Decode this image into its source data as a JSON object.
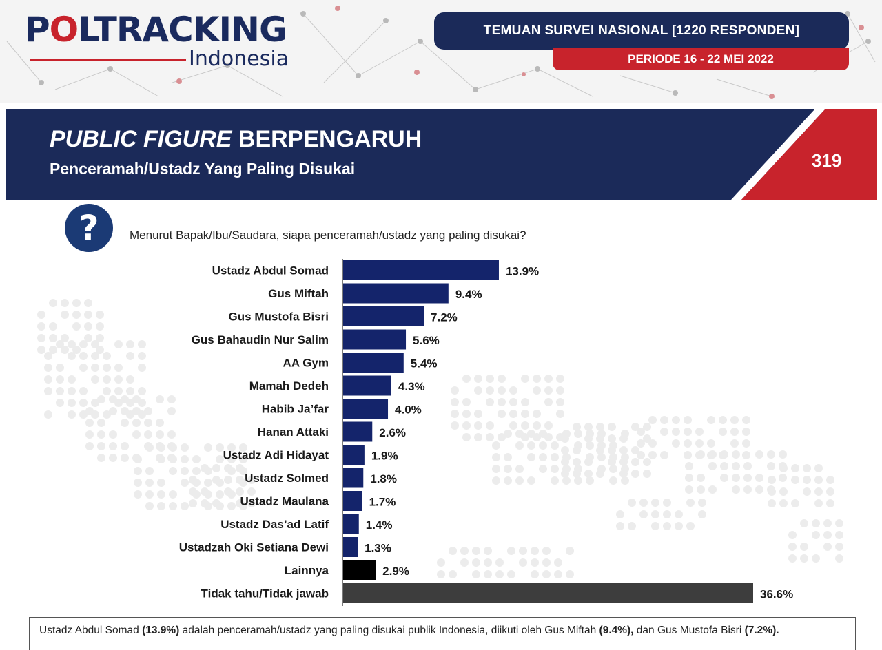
{
  "header": {
    "logo_main": "POLTRACKING",
    "logo_sub": "Indonesia",
    "survey_label": "TEMUAN SURVEI NASIONAL [1220 RESPONDEN]",
    "period_label": "PERIODE 16 - 22 MEI 2022"
  },
  "title_band": {
    "title_italic": "PUBLIC FIGURE",
    "title_rest": "BERPENGARUH",
    "subtitle": "Penceramah/Ustadz Yang Paling Disukai",
    "page_number": "319"
  },
  "question": {
    "icon": "question-mark-icon",
    "text": "Menurut Bapak/Ibu/Saudara, siapa penceramah/ustadz yang paling disukai?"
  },
  "colors": {
    "navy": "#1b2a59",
    "bar_blue": "#14246b",
    "red": "#c8232c",
    "bar_other": "#000000",
    "bar_unknown": "#3d3d3d"
  },
  "chart_data": {
    "type": "bar",
    "orientation": "horizontal",
    "title": "",
    "xlabel": "",
    "ylabel": "",
    "xlim": [
      0,
      40
    ],
    "grid": false,
    "value_suffix": "%",
    "categories": [
      "Ustadz Abdul Somad",
      "Gus Miftah",
      "Gus Mustofa Bisri",
      "Gus Bahaudin Nur Salim",
      "AA Gym",
      "Mamah Dedeh",
      "Habib Ja’far",
      "Hanan Attaki",
      "Ustadz Adi Hidayat",
      "Ustadz Solmed",
      "Ustadz Maulana",
      "Ustadz Das’ad Latif",
      "Ustadzah Oki Setiana Dewi",
      "Lainnya",
      "Tidak tahu/Tidak jawab"
    ],
    "values": [
      13.9,
      9.4,
      7.2,
      5.6,
      5.4,
      4.3,
      4.0,
      2.6,
      1.9,
      1.8,
      1.7,
      1.4,
      1.3,
      2.9,
      36.6
    ],
    "value_labels": [
      "13.9%",
      "9.4%",
      "7.2%",
      "5.6%",
      "5.4%",
      "4.3%",
      "4.0%",
      "2.6%",
      "1.9%",
      "1.8%",
      "1.7%",
      "1.4%",
      "1.3%",
      "2.9%",
      "36.6%"
    ],
    "bar_colors": [
      "#14246b",
      "#14246b",
      "#14246b",
      "#14246b",
      "#14246b",
      "#14246b",
      "#14246b",
      "#14246b",
      "#14246b",
      "#14246b",
      "#14246b",
      "#14246b",
      "#14246b",
      "#000000",
      "#3d3d3d"
    ]
  },
  "note": {
    "p1": "Ustadz Abdul Somad ",
    "b1": "(13.9%)",
    "p2": " adalah penceramah/ustadz yang paling disukai publik Indonesia, diikuti oleh Gus Miftah ",
    "b2": "(9.4%),",
    "p3": " dan Gus Mustofa Bisri ",
    "b3": "(7.2%)."
  }
}
